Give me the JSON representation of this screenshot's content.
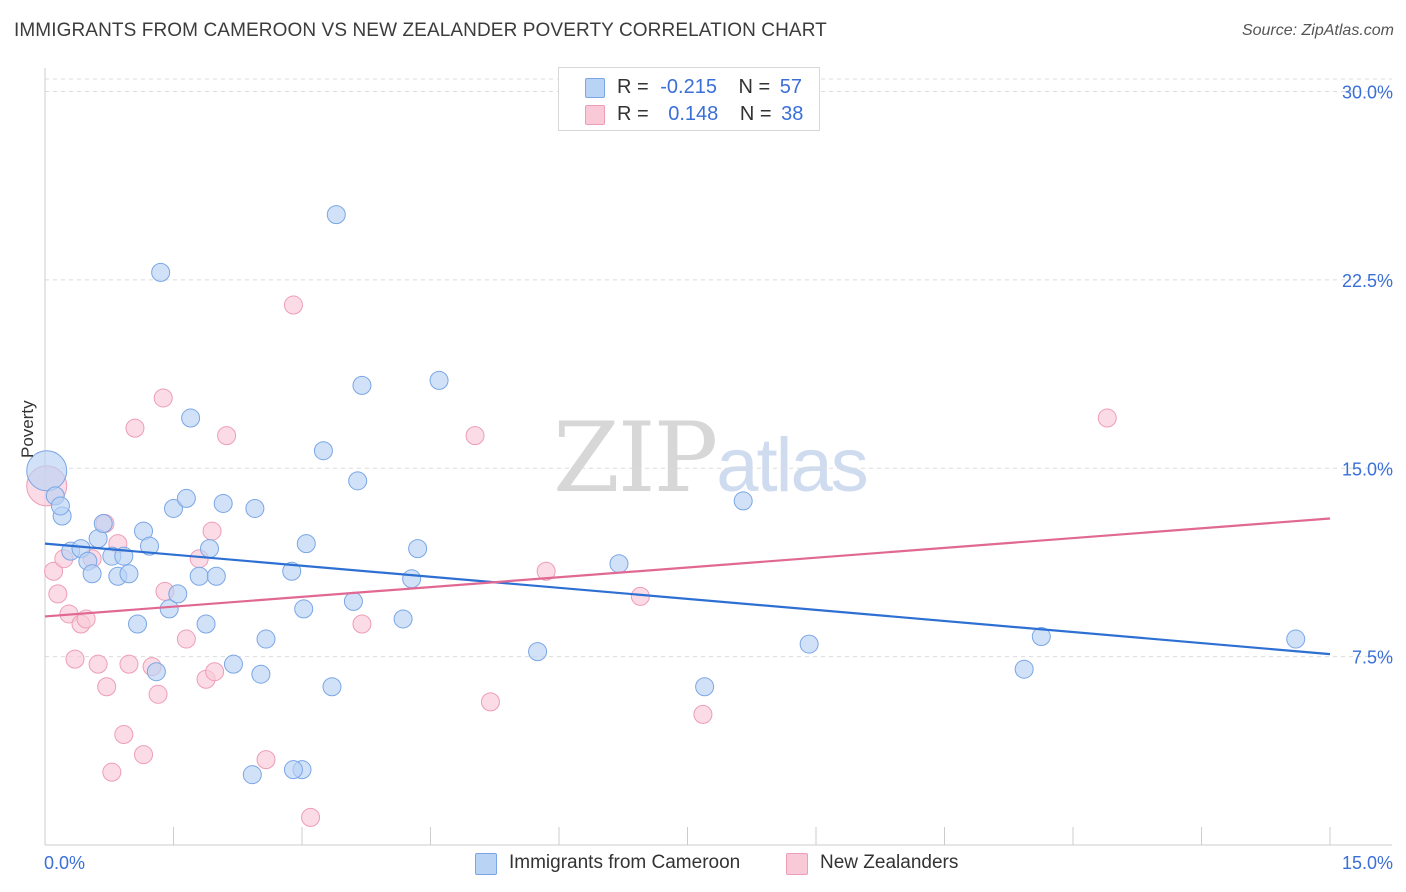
{
  "title": "IMMIGRANTS FROM CAMEROON VS NEW ZEALANDER POVERTY CORRELATION CHART",
  "source": "Source: ZipAtlas.com",
  "watermark": {
    "zip": "ZIP",
    "atlas": "atlas"
  },
  "colors": {
    "blue_fill": "#b9d3f5",
    "blue_stroke": "#7aa6e6",
    "blue_line": "#2d6fd2",
    "pink_fill": "#f9c9d8",
    "pink_stroke": "#ee9db6",
    "pink_line": "#e06893",
    "tick_label": "#3a6fd8",
    "grid": "#dcdcdc"
  },
  "legend_top": {
    "rows": [
      {
        "r_label": "R =",
        "r_value": "-0.215",
        "n_label": "N =",
        "n_value": "57"
      },
      {
        "r_label": "R =",
        "r_value": "0.148",
        "n_label": "N =",
        "n_value": "38"
      }
    ]
  },
  "legend_bottom": {
    "series1": "Immigrants from Cameroon",
    "series2": "New Zealanders"
  },
  "chart_data": {
    "type": "scatter",
    "title": "IMMIGRANTS FROM CAMEROON VS NEW ZEALANDER POVERTY CORRELATION CHART",
    "xlabel": "",
    "ylabel": "Poverty",
    "xlim": [
      0,
      15
    ],
    "ylim": [
      0,
      30.5
    ],
    "x_tick_labels": [
      "0.0%",
      "15.0%"
    ],
    "y_ticks": [
      7.5,
      15.0,
      22.5,
      30.0
    ],
    "y_tick_labels": [
      "7.5%",
      "15.0%",
      "22.5%",
      "30.0%"
    ],
    "grid": true,
    "series": [
      {
        "name": "Immigrants from Cameroon",
        "color": "#b9d3f5",
        "trend": {
          "x": [
            0,
            15
          ],
          "y": [
            12.0,
            7.6
          ]
        },
        "points": [
          {
            "x": 0.02,
            "y": 14.9,
            "big": true
          },
          {
            "x": 0.12,
            "y": 13.9
          },
          {
            "x": 0.2,
            "y": 13.1
          },
          {
            "x": 0.3,
            "y": 11.7
          },
          {
            "x": 0.42,
            "y": 11.8
          },
          {
            "x": 0.5,
            "y": 11.3
          },
          {
            "x": 0.55,
            "y": 10.8
          },
          {
            "x": 0.62,
            "y": 12.2
          },
          {
            "x": 0.68,
            "y": 12.8
          },
          {
            "x": 0.78,
            "y": 11.5
          },
          {
            "x": 0.85,
            "y": 10.7
          },
          {
            "x": 0.92,
            "y": 11.5
          },
          {
            "x": 0.98,
            "y": 10.8
          },
          {
            "x": 1.08,
            "y": 8.8
          },
          {
            "x": 1.15,
            "y": 12.5
          },
          {
            "x": 1.22,
            "y": 11.9
          },
          {
            "x": 1.3,
            "y": 6.9
          },
          {
            "x": 1.35,
            "y": 22.8
          },
          {
            "x": 1.45,
            "y": 9.4
          },
          {
            "x": 1.5,
            "y": 13.4
          },
          {
            "x": 1.55,
            "y": 10.0
          },
          {
            "x": 1.65,
            "y": 13.8
          },
          {
            "x": 1.7,
            "y": 17.0
          },
          {
            "x": 1.8,
            "y": 10.7
          },
          {
            "x": 1.88,
            "y": 8.8
          },
          {
            "x": 1.92,
            "y": 11.8
          },
          {
            "x": 2.0,
            "y": 10.7
          },
          {
            "x": 2.08,
            "y": 13.6
          },
          {
            "x": 2.2,
            "y": 7.2
          },
          {
            "x": 2.45,
            "y": 13.4
          },
          {
            "x": 2.52,
            "y": 6.8
          },
          {
            "x": 2.58,
            "y": 8.2
          },
          {
            "x": 2.88,
            "y": 10.9
          },
          {
            "x": 3.0,
            "y": 3.0
          },
          {
            "x": 3.02,
            "y": 9.4
          },
          {
            "x": 3.05,
            "y": 12.0
          },
          {
            "x": 3.25,
            "y": 15.7
          },
          {
            "x": 3.35,
            "y": 6.3
          },
          {
            "x": 3.4,
            "y": 25.1
          },
          {
            "x": 3.6,
            "y": 9.7
          },
          {
            "x": 3.65,
            "y": 14.5
          },
          {
            "x": 3.7,
            "y": 18.3
          },
          {
            "x": 4.18,
            "y": 9.0
          },
          {
            "x": 4.28,
            "y": 10.6
          },
          {
            "x": 4.35,
            "y": 11.8
          },
          {
            "x": 4.6,
            "y": 18.5
          },
          {
            "x": 5.75,
            "y": 7.7
          },
          {
            "x": 6.7,
            "y": 11.2
          },
          {
            "x": 7.7,
            "y": 6.3
          },
          {
            "x": 8.15,
            "y": 13.7
          },
          {
            "x": 8.92,
            "y": 8.0
          },
          {
            "x": 11.43,
            "y": 7.0
          },
          {
            "x": 11.63,
            "y": 8.3
          },
          {
            "x": 14.6,
            "y": 8.2
          },
          {
            "x": 2.42,
            "y": 2.8
          },
          {
            "x": 2.9,
            "y": 3.0
          },
          {
            "x": 0.18,
            "y": 13.5
          }
        ]
      },
      {
        "name": "New Zealanders",
        "color": "#f9c9d8",
        "trend": {
          "x": [
            0,
            15
          ],
          "y": [
            9.1,
            13.0
          ]
        },
        "points": [
          {
            "x": 0.02,
            "y": 14.3,
            "big": true
          },
          {
            "x": 0.1,
            "y": 10.9
          },
          {
            "x": 0.15,
            "y": 10.0
          },
          {
            "x": 0.22,
            "y": 11.4
          },
          {
            "x": 0.28,
            "y": 9.2
          },
          {
            "x": 0.35,
            "y": 7.4
          },
          {
            "x": 0.42,
            "y": 8.8
          },
          {
            "x": 0.48,
            "y": 9.0
          },
          {
            "x": 0.55,
            "y": 11.4
          },
          {
            "x": 0.62,
            "y": 7.2
          },
          {
            "x": 0.7,
            "y": 12.8
          },
          {
            "x": 0.72,
            "y": 6.3
          },
          {
            "x": 0.78,
            "y": 2.9
          },
          {
            "x": 0.85,
            "y": 12.0
          },
          {
            "x": 0.92,
            "y": 4.4
          },
          {
            "x": 0.98,
            "y": 7.2
          },
          {
            "x": 1.05,
            "y": 16.6
          },
          {
            "x": 1.15,
            "y": 3.6
          },
          {
            "x": 1.25,
            "y": 7.1
          },
          {
            "x": 1.32,
            "y": 6.0
          },
          {
            "x": 1.38,
            "y": 17.8
          },
          {
            "x": 1.4,
            "y": 10.1
          },
          {
            "x": 1.65,
            "y": 8.2
          },
          {
            "x": 1.8,
            "y": 11.4
          },
          {
            "x": 1.88,
            "y": 6.6
          },
          {
            "x": 1.95,
            "y": 12.5
          },
          {
            "x": 1.98,
            "y": 6.9
          },
          {
            "x": 2.12,
            "y": 16.3
          },
          {
            "x": 2.58,
            "y": 3.4
          },
          {
            "x": 2.9,
            "y": 21.5
          },
          {
            "x": 3.1,
            "y": 1.1
          },
          {
            "x": 3.7,
            "y": 8.8
          },
          {
            "x": 5.02,
            "y": 16.3
          },
          {
            "x": 5.2,
            "y": 5.7
          },
          {
            "x": 5.85,
            "y": 10.9
          },
          {
            "x": 6.95,
            "y": 9.9
          },
          {
            "x": 7.68,
            "y": 5.2
          },
          {
            "x": 12.4,
            "y": 17.0
          }
        ]
      }
    ]
  }
}
